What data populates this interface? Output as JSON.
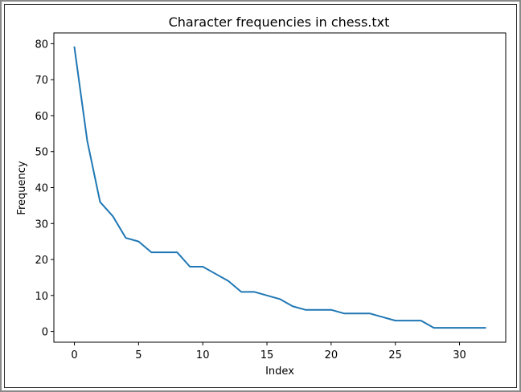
{
  "chart_data": {
    "type": "line",
    "title": "Character frequencies in chess.txt",
    "xlabel": "Index",
    "ylabel": "Frequency",
    "xlim": [
      -1.6,
      33.6
    ],
    "ylim": [
      -3,
      83
    ],
    "xticks": [
      0,
      5,
      10,
      15,
      20,
      25,
      30
    ],
    "yticks": [
      0,
      10,
      20,
      30,
      40,
      50,
      60,
      70,
      80
    ],
    "grid": false,
    "series": [
      {
        "color": "#1f77b4",
        "x": [
          0,
          1,
          2,
          3,
          4,
          5,
          6,
          7,
          8,
          9,
          10,
          11,
          12,
          13,
          14,
          15,
          16,
          17,
          18,
          19,
          20,
          21,
          22,
          23,
          24,
          25,
          26,
          27,
          28,
          29,
          30,
          31,
          32
        ],
        "values": [
          79,
          53,
          36,
          32,
          26,
          25,
          22,
          22,
          22,
          18,
          18,
          16,
          14,
          11,
          11,
          10,
          9,
          7,
          6,
          6,
          6,
          5,
          5,
          5,
          4,
          3,
          3,
          3,
          1,
          1,
          1,
          1,
          1
        ]
      }
    ]
  }
}
